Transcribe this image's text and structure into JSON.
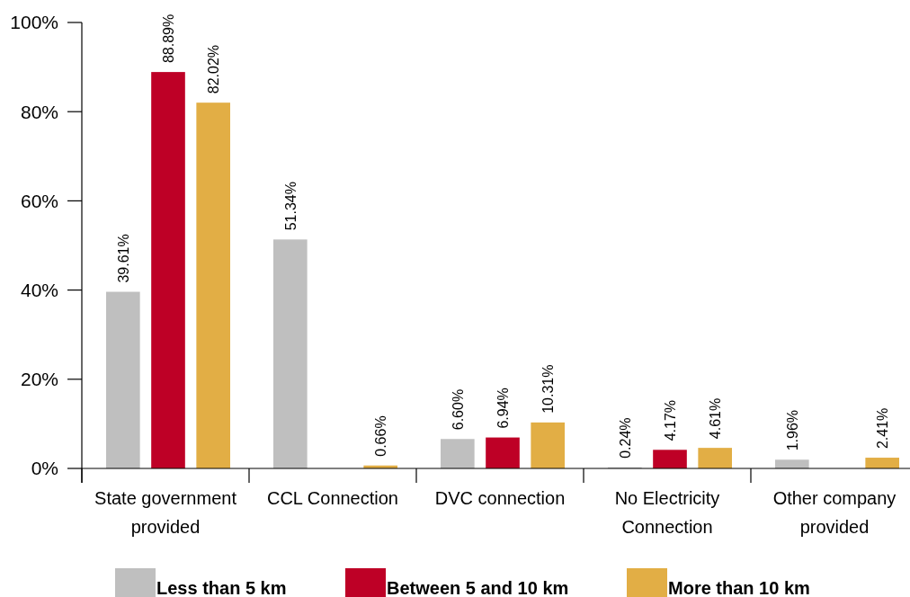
{
  "chart_data": {
    "type": "bar",
    "categories": [
      "State government provided",
      "CCL Connection",
      "DVC connection",
      "No Electricity Connection",
      "Other company provided"
    ],
    "series": [
      {
        "name": "Less than 5 km",
        "color": "#bfbfbf",
        "values": [
          39.61,
          51.34,
          6.6,
          0.24,
          1.96
        ],
        "value_labels": [
          "39.61%",
          "51.34%",
          "6.60%",
          "0.24%",
          "1.96%"
        ]
      },
      {
        "name": "Between 5 and 10 km",
        "color": "#be0026",
        "values": [
          88.89,
          0,
          6.94,
          4.17,
          0
        ],
        "value_labels": [
          "88.89%",
          null,
          "6.94%",
          "4.17%",
          null
        ]
      },
      {
        "name": "More than 10 km",
        "color": "#e2ae45",
        "values": [
          82.02,
          0.66,
          10.31,
          4.61,
          2.41
        ],
        "value_labels": [
          "82.02%",
          "0.66%",
          "10.31%",
          "4.61%",
          "2.41%"
        ]
      }
    ],
    "ylim": [
      0,
      100
    ],
    "yticks": [
      {
        "value": 0,
        "label": "0%"
      },
      {
        "value": 20,
        "label": "20%"
      },
      {
        "value": 40,
        "label": "40%"
      },
      {
        "value": 60,
        "label": "60%"
      },
      {
        "value": 80,
        "label": "80%"
      },
      {
        "value": 100,
        "label": "100%"
      }
    ],
    "grid": false,
    "legend": "bottom"
  }
}
